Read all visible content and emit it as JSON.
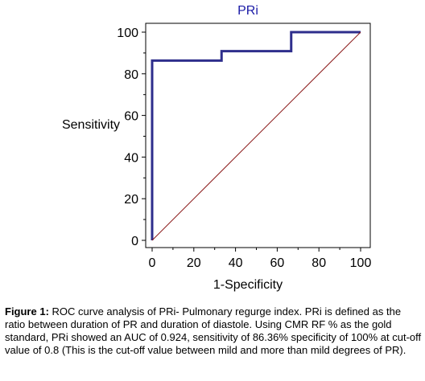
{
  "chart_data": {
    "type": "line",
    "title": "PRi",
    "xlabel": "1-Specificity",
    "ylabel": "Sensitivity",
    "xlim": [
      0,
      100
    ],
    "ylim": [
      0,
      100
    ],
    "xticks": [
      "0",
      "20",
      "40",
      "60",
      "80",
      "100"
    ],
    "yticks": [
      "0",
      "20",
      "40",
      "60",
      "80",
      "100"
    ],
    "grid": false,
    "series": [
      {
        "color": "#2e2e8c",
        "x": [
          0,
          0,
          33.3,
          33.3,
          66.7,
          66.7,
          100
        ],
        "y": [
          0,
          86.36,
          86.36,
          90.9,
          90.9,
          100,
          100
        ]
      },
      {
        "color": "#8b1a1a",
        "x": [
          0,
          100
        ],
        "y": [
          0,
          100
        ]
      }
    ]
  },
  "caption": {
    "label": "Figure 1:",
    "text": " ROC curve analysis of PRi- Pulmonary regurge index. PRi is defined as the ratio between duration of PR and duration of diastole. Using CMR RF % as the gold standard, PRi showed an AUC of 0.924, sensitivity of 86.36% specificity of 100% at cut-off value of 0.8 (This is the cut-off value between mild and more than mild degrees of PR)."
  }
}
